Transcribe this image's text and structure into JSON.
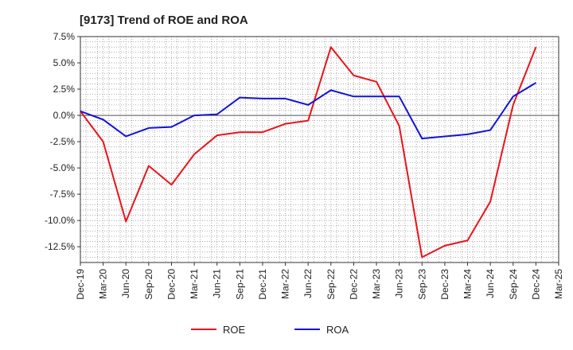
{
  "chart_data": {
    "type": "line",
    "title": "[9173]  Trend of ROE and ROA",
    "xlabel": "",
    "ylabel": "",
    "categories": [
      "Dec-19",
      "Mar-20",
      "Jun-20",
      "Sep-20",
      "Dec-20",
      "Mar-21",
      "Jun-21",
      "Sep-21",
      "Dec-21",
      "Mar-22",
      "Jun-22",
      "Sep-22",
      "Dec-22",
      "Mar-23",
      "Jun-23",
      "Sep-23",
      "Dec-23",
      "Mar-24",
      "Jun-24",
      "Sep-24",
      "Dec-24",
      "Mar-25"
    ],
    "ylim": [
      -14.0,
      7.5
    ],
    "yticks": [
      7.5,
      5.0,
      2.5,
      0.0,
      -2.5,
      -5.0,
      -7.5,
      -10.0,
      -12.5
    ],
    "ytick_labels": [
      "7.5%",
      "5.0%",
      "2.5%",
      "0.0%",
      "-2.5%",
      "-5.0%",
      "-7.5%",
      "-10.0%",
      "-12.5%"
    ],
    "grid": true,
    "legend_position": "bottom-center",
    "series": [
      {
        "name": "ROE",
        "color": "#e8141b",
        "values": [
          0.4,
          -2.5,
          -10.1,
          -4.8,
          -6.6,
          -3.7,
          -1.9,
          -1.6,
          -1.6,
          -0.8,
          -0.5,
          6.5,
          3.8,
          3.2,
          -1.0,
          -13.5,
          -12.4,
          -11.9,
          -8.2,
          1.0,
          6.5,
          null
        ]
      },
      {
        "name": "ROA",
        "color": "#1414d6",
        "values": [
          0.4,
          -0.4,
          -2.0,
          -1.2,
          -1.1,
          0.0,
          0.1,
          1.7,
          1.6,
          1.6,
          1.0,
          2.4,
          1.8,
          1.8,
          1.8,
          -2.2,
          -2.0,
          -1.8,
          -1.4,
          1.8,
          3.1,
          null
        ]
      }
    ]
  }
}
